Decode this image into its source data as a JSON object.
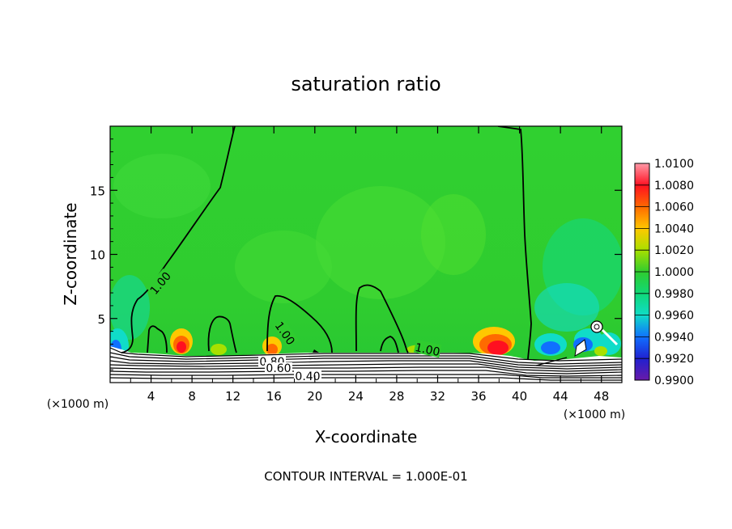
{
  "chart_data": {
    "type": "heatmap",
    "title": "saturation ratio",
    "xlabel": "X-coordinate",
    "ylabel": "Z-coordinate",
    "x_unit": "(×1000 m)",
    "x_unit_right": "(×1000 m)",
    "xlim": [
      0,
      50
    ],
    "ylim": [
      0,
      20
    ],
    "x_ticks": [
      "4",
      "8",
      "12",
      "16",
      "20",
      "24",
      "28",
      "32",
      "36",
      "40",
      "44",
      "48"
    ],
    "y_ticks": [
      "5",
      "10",
      "15"
    ],
    "colorbar": {
      "levels": [
        "1.0100",
        "1.0080",
        "1.0060",
        "1.0040",
        "1.0020",
        "1.0000",
        "0.9980",
        "0.9960",
        "0.9940",
        "0.9920",
        "0.9900"
      ],
      "colors": [
        "#ff9aa8",
        "#ff1020",
        "#ff6a00",
        "#ffc800",
        "#a8e000",
        "#2fcc2f",
        "#10d878",
        "#10dcc8",
        "#1070ff",
        "#2020d0",
        "#6a1aa8"
      ]
    },
    "contour_labels": [
      "1.00",
      "1.00",
      "1.00",
      "0.80",
      "0.60",
      "0.40"
    ],
    "footer": "CONTOUR INTERVAL = 1.000E-01"
  }
}
